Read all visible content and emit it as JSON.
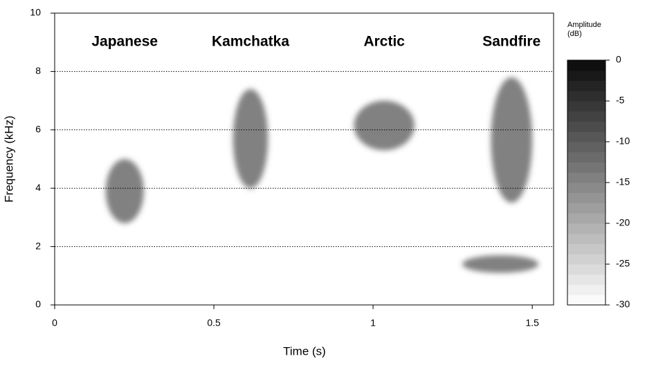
{
  "chart_data": {
    "type": "spectrogram",
    "x_label": "Time (s)",
    "y_label": "Frequency (kHz)",
    "xlim": [
      0,
      1.567
    ],
    "xticks": [
      0,
      0.5,
      1,
      1.5
    ],
    "ylim": [
      0,
      10
    ],
    "yticks": [
      0,
      2,
      4,
      6,
      8,
      10
    ],
    "grid": true,
    "calls": [
      {
        "name": "Japanese",
        "parts": [
          {
            "time": [
              0.16,
              0.28
            ],
            "freq": [
              2.8,
              5.0
            ]
          }
        ]
      },
      {
        "name": "Kamchatka",
        "parts": [
          {
            "time": [
              0.56,
              0.67
            ],
            "freq": [
              4.0,
              7.4
            ]
          }
        ]
      },
      {
        "name": "Arctic",
        "parts": [
          {
            "time": [
              0.94,
              1.13
            ],
            "freq": [
              5.3,
              7.0
            ]
          }
        ]
      },
      {
        "name": "Sandfire",
        "parts": [
          {
            "time": [
              1.37,
              1.5
            ],
            "freq": [
              3.5,
              7.8
            ]
          },
          {
            "time": [
              1.28,
              1.52
            ],
            "freq": [
              1.1,
              1.7
            ]
          }
        ]
      }
    ],
    "colorbar": {
      "title": [
        "Amplitude",
        "(dB)"
      ],
      "lim": [
        -30,
        0
      ],
      "ticks": [
        0,
        -5,
        -10,
        -15,
        -20,
        -25,
        -30
      ]
    }
  }
}
